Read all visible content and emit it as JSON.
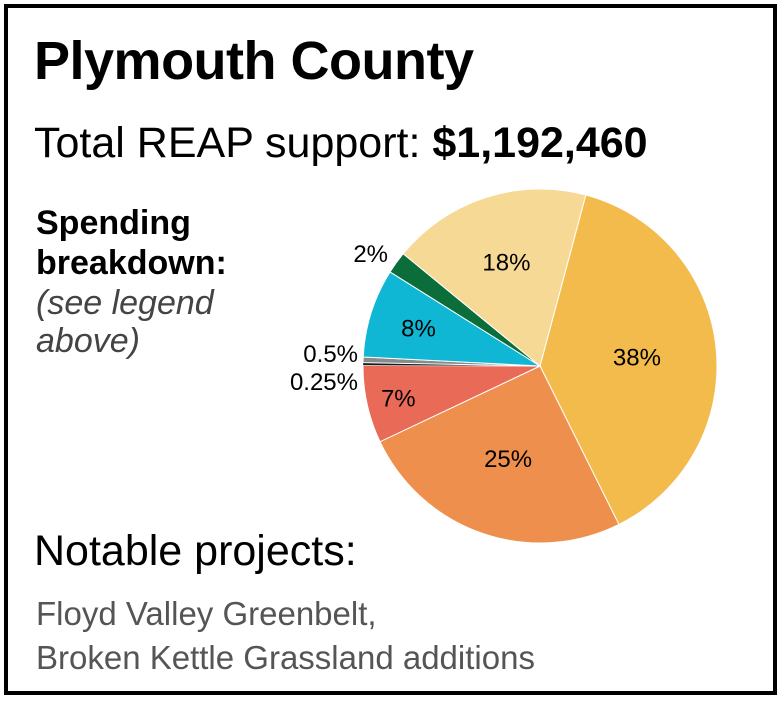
{
  "header": {
    "county": "Plymouth County",
    "total_label": "Total REAP support:",
    "total_amount": "$1,192,460"
  },
  "breakdown": {
    "title_line1": "Spending",
    "title_line2": "breakdown:",
    "note_line1": "(see legend",
    "note_line2": "above)"
  },
  "chart_data": {
    "type": "pie",
    "title": "",
    "slices": [
      {
        "label": "38%",
        "value": 38,
        "color": "#f2bb4b"
      },
      {
        "label": "25%",
        "value": 25,
        "color": "#ee8f4e"
      },
      {
        "label": "7%",
        "value": 7,
        "color": "#e86a57"
      },
      {
        "label": "0.25%",
        "value": 0.25,
        "color": "#1a1a1a"
      },
      {
        "label": "0.5%",
        "value": 0.5,
        "color": "#8a8a8a"
      },
      {
        "label": "8%",
        "value": 8,
        "color": "#10b7d5"
      },
      {
        "label": "2%",
        "value": 2,
        "color": "#0b6e3a"
      },
      {
        "label": "18%",
        "value": 18,
        "color": "#f6d995"
      }
    ]
  },
  "notable": {
    "title": "Notable projects:",
    "projects": [
      "Floyd Valley Greenbelt,",
      "Broken Kettle Grassland additions"
    ]
  }
}
